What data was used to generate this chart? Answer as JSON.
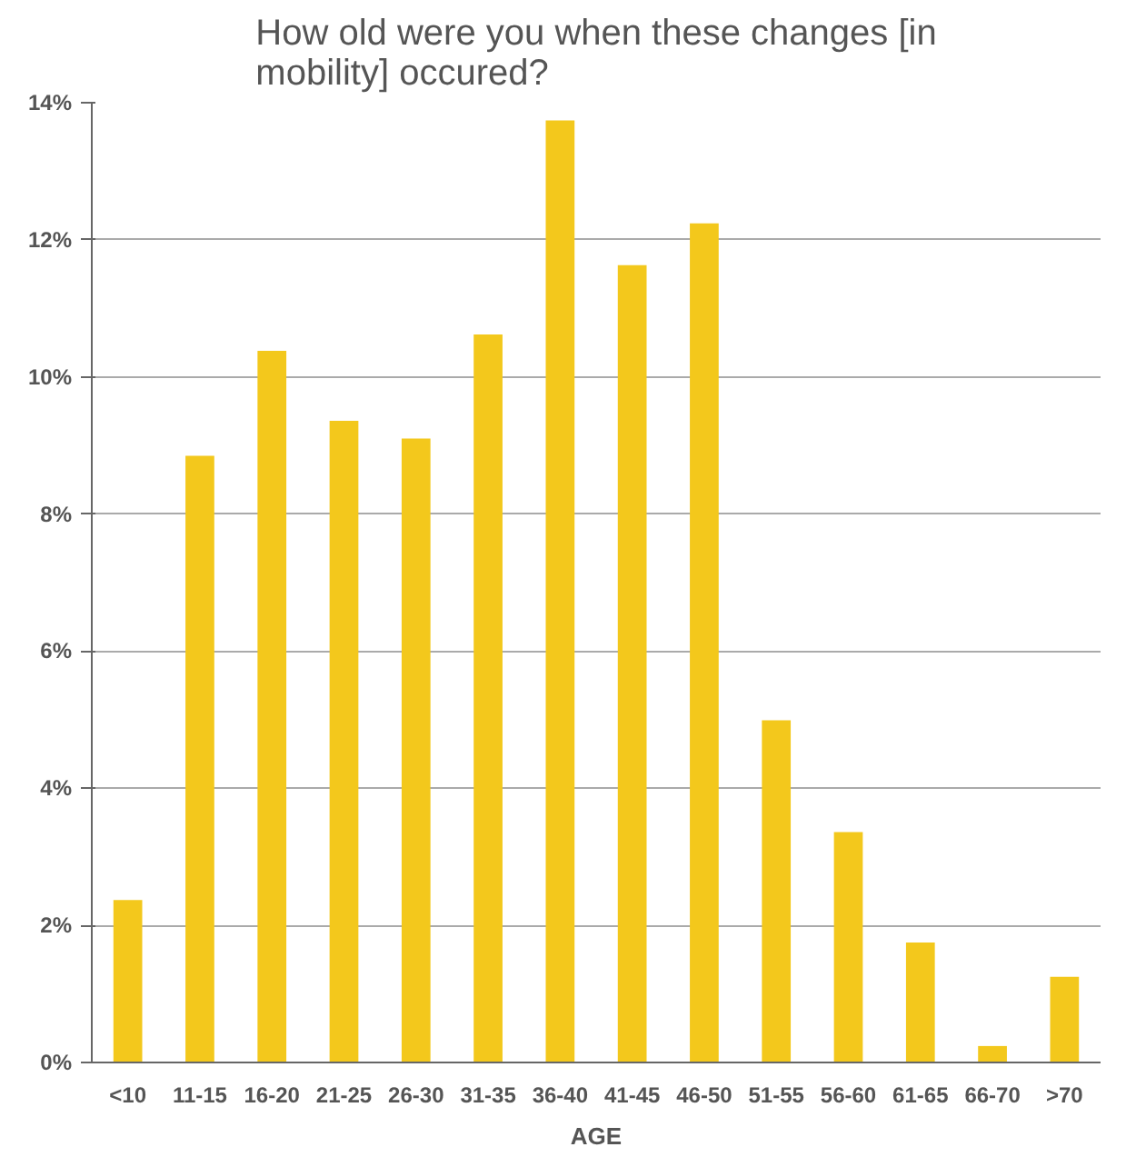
{
  "chart_data": {
    "type": "bar",
    "title": "How old were you when these changes [in mobility] occured?",
    "xlabel": "AGE",
    "categories": [
      "<10",
      "11-15",
      "16-20",
      "21-25",
      "26-30",
      "31-35",
      "36-40",
      "41-45",
      "46-50",
      "51-55",
      "56-60",
      "61-65",
      "66-70",
      ">70"
    ],
    "values": [
      2.37,
      8.85,
      10.38,
      9.36,
      9.1,
      10.62,
      13.74,
      11.63,
      12.24,
      4.99,
      3.36,
      1.75,
      0.24,
      1.25
    ],
    "color": "#f3c81c",
    "ylim": [
      0,
      14
    ],
    "yticks": [
      {
        "value": 0,
        "label": "0%"
      },
      {
        "value": 2,
        "label": "2%"
      },
      {
        "value": 4,
        "label": "4%"
      },
      {
        "value": 6,
        "label": "6%"
      },
      {
        "value": 8,
        "label": "8%"
      },
      {
        "value": 10,
        "label": "10%"
      },
      {
        "value": 12,
        "label": "12%"
      },
      {
        "value": 14,
        "label": "14%"
      }
    ],
    "grid": "y"
  }
}
